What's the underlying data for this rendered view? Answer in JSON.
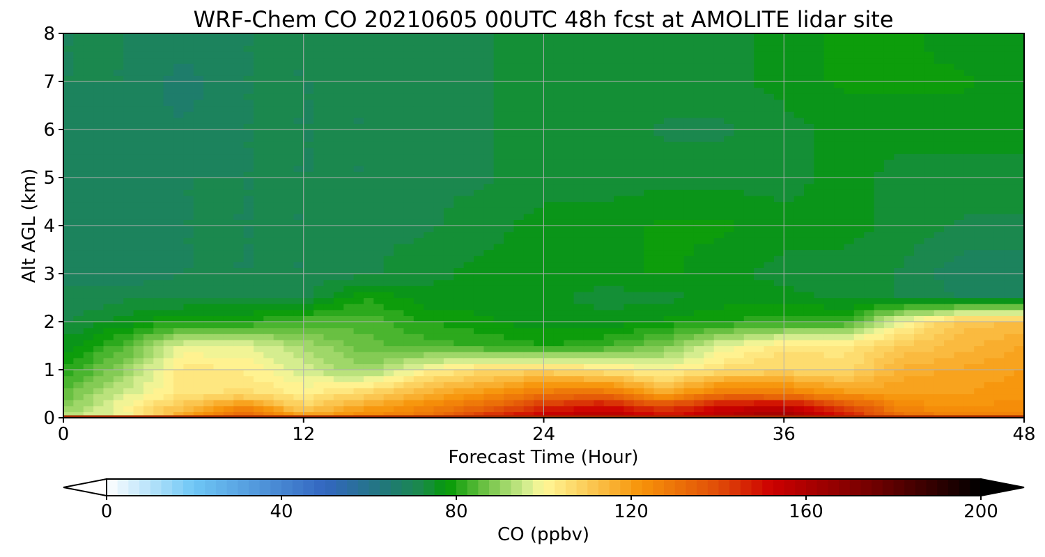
{
  "chart_data": {
    "type": "heatmap",
    "title": "WRF-Chem CO  20210605 00UTC 48h fcst at AMOLITE lidar site",
    "xlabel": "Forecast Time (Hour)",
    "ylabel": "Alt AGL (km)",
    "xlim": [
      0,
      48
    ],
    "ylim": [
      0,
      8
    ],
    "x_ticks": [
      0,
      12,
      24,
      36,
      48
    ],
    "y_ticks": [
      0,
      1,
      2,
      3,
      4,
      5,
      6,
      7,
      8
    ],
    "grid": true,
    "x": [
      0,
      3,
      6,
      9,
      12,
      15,
      18,
      21,
      24,
      27,
      30,
      33,
      36,
      39,
      42,
      45,
      48
    ],
    "y": [
      0,
      0.25,
      0.5,
      1,
      1.5,
      2,
      2.5,
      3,
      4,
      5,
      6,
      7,
      8
    ],
    "values": [
      [
        95,
        98,
        118,
        135,
        120,
        125,
        130,
        145,
        155,
        160,
        150,
        158,
        165,
        150,
        130,
        128,
        128
      ],
      [
        88,
        100,
        112,
        124,
        108,
        118,
        124,
        132,
        145,
        150,
        140,
        152,
        155,
        140,
        124,
        122,
        124
      ],
      [
        86,
        96,
        104,
        106,
        102,
        108,
        116,
        122,
        130,
        132,
        118,
        130,
        128,
        122,
        120,
        120,
        122
      ],
      [
        80,
        90,
        104,
        102,
        96,
        90,
        100,
        106,
        108,
        104,
        100,
        106,
        108,
        106,
        116,
        118,
        120
      ],
      [
        76,
        84,
        98,
        98,
        92,
        86,
        84,
        82,
        80,
        82,
        88,
        98,
        104,
        104,
        110,
        114,
        118
      ],
      [
        72,
        76,
        80,
        80,
        84,
        84,
        80,
        78,
        76,
        76,
        78,
        80,
        82,
        82,
        100,
        112,
        112
      ],
      [
        70,
        72,
        72,
        72,
        72,
        80,
        76,
        76,
        76,
        74,
        74,
        76,
        76,
        74,
        72,
        70,
        70
      ],
      [
        70,
        68,
        70,
        70,
        70,
        72,
        74,
        76,
        76,
        76,
        78,
        76,
        74,
        74,
        72,
        68,
        68
      ],
      [
        68,
        68,
        70,
        70,
        70,
        72,
        72,
        74,
        76,
        76,
        78,
        78,
        76,
        76,
        74,
        72,
        72
      ],
      [
        68,
        68,
        70,
        70,
        70,
        70,
        72,
        72,
        74,
        74,
        74,
        74,
        74,
        76,
        74,
        74,
        74
      ],
      [
        68,
        68,
        68,
        70,
        70,
        70,
        72,
        72,
        74,
        74,
        72,
        72,
        74,
        76,
        76,
        76,
        76
      ],
      [
        70,
        70,
        66,
        70,
        70,
        70,
        72,
        72,
        74,
        74,
        74,
        74,
        76,
        78,
        78,
        78,
        76
      ],
      [
        70,
        70,
        70,
        70,
        70,
        72,
        72,
        72,
        74,
        74,
        74,
        74,
        76,
        78,
        78,
        76,
        76
      ]
    ],
    "colorbar": {
      "label": "CO  (ppbv)",
      "min": 0,
      "max": 200,
      "step": 2.5,
      "ticks": [
        0,
        40,
        80,
        120,
        160,
        200
      ],
      "extend": "both",
      "stops": [
        {
          "value": 0,
          "color": "#ffffff"
        },
        {
          "value": 20,
          "color": "#6ec6f5"
        },
        {
          "value": 50,
          "color": "#3366c0"
        },
        {
          "value": 65,
          "color": "#1f7a72"
        },
        {
          "value": 72,
          "color": "#1a8a4a"
        },
        {
          "value": 78,
          "color": "#049a05"
        },
        {
          "value": 86,
          "color": "#66bf40"
        },
        {
          "value": 96,
          "color": "#d2ec8e"
        },
        {
          "value": 100,
          "color": "#fff898"
        },
        {
          "value": 112,
          "color": "#fbc24a"
        },
        {
          "value": 122,
          "color": "#f79409"
        },
        {
          "value": 140,
          "color": "#e04c08"
        },
        {
          "value": 152,
          "color": "#cd0000"
        },
        {
          "value": 176,
          "color": "#6e0000"
        },
        {
          "value": 200,
          "color": "#000000"
        }
      ]
    }
  }
}
